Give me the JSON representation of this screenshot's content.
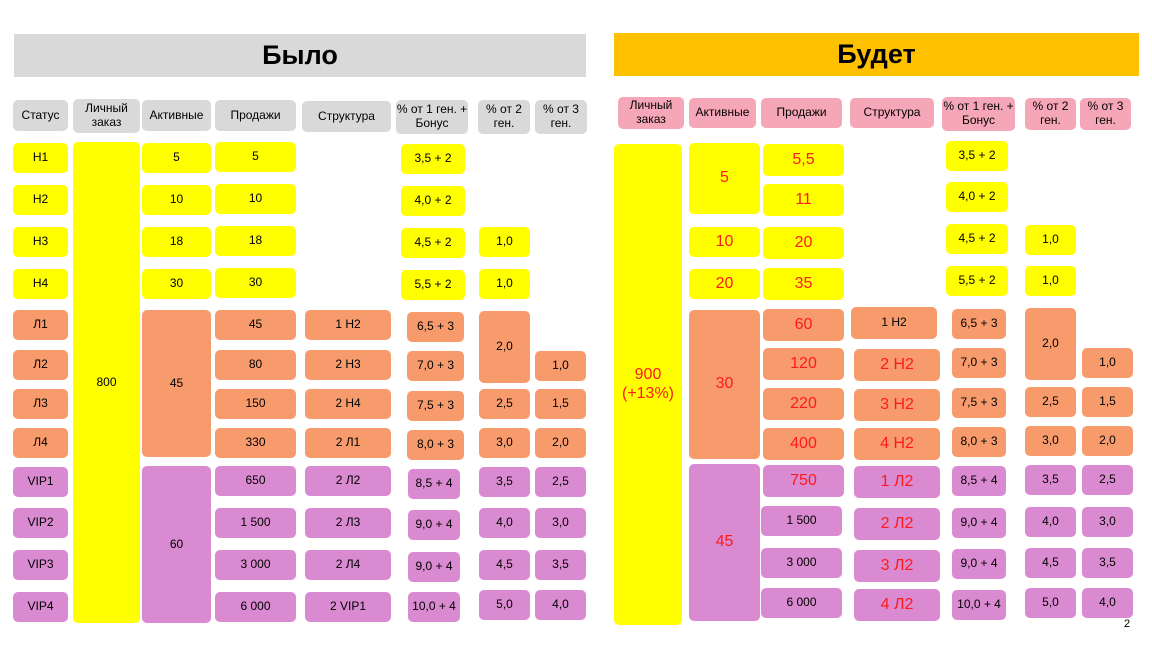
{
  "title_left": "Было",
  "title_right": "Будет",
  "page_number": "2",
  "colors": {
    "yellow": "#ffff00",
    "orange": "#f79b6c",
    "purple": "#da8ad0",
    "pink": "#f6a7b7",
    "gray": "#d9d9d9",
    "gold": "#ffc000",
    "red_text": "#ff1a1a"
  },
  "left": {
    "headers": [
      "Статус",
      "Личный заказ",
      "Активные",
      "Продажи",
      "Структура",
      "% от 1 ген. + Бонус",
      "% от 2 ген.",
      "% от 3 ген."
    ],
    "rows": [
      {
        "status": "Н1",
        "sales": "5",
        "structure": "",
        "g1": "3,5 + 2",
        "g2": "",
        "g3": ""
      },
      {
        "status": "Н2",
        "sales": "10",
        "structure": "",
        "g1": "4,0 + 2",
        "g2": "",
        "g3": ""
      },
      {
        "status": "Н3",
        "sales": "18",
        "structure": "",
        "g1": "4,5 + 2",
        "g2": "1,0",
        "g3": ""
      },
      {
        "status": "Н4",
        "sales": "30",
        "structure": "",
        "g1": "5,5 + 2",
        "g2": "1,0",
        "g3": ""
      },
      {
        "status": "Л1",
        "sales": "45",
        "structure": "1 Н2",
        "g1": "6,5 + 3",
        "g2": "",
        "g3": ""
      },
      {
        "status": "Л2",
        "sales": "80",
        "structure": "2 Н3",
        "g1": "7,0 + 3",
        "g2": "",
        "g3": "1,0"
      },
      {
        "status": "Л3",
        "sales": "150",
        "structure": "2 Н4",
        "g1": "7,5 + 3",
        "g2": "2,5",
        "g3": "1,5"
      },
      {
        "status": "Л4",
        "sales": "330",
        "structure": "2 Л1",
        "g1": "8,0 + 3",
        "g2": "3,0",
        "g3": "2,0"
      },
      {
        "status": "VIP1",
        "sales": "650",
        "structure": "2 Л2",
        "g1": "8,5 + 4",
        "g2": "3,5",
        "g3": "2,5"
      },
      {
        "status": "VIP2",
        "sales": "1 500",
        "structure": "2 Л3",
        "g1": "9,0 + 4",
        "g2": "4,0",
        "g3": "3,0"
      },
      {
        "status": "VIP3",
        "sales": "3 000",
        "structure": "2 Л4",
        "g1": "9,0 + 4",
        "g2": "4,5",
        "g3": "3,5"
      },
      {
        "status": "VIP4",
        "sales": "6 000",
        "structure": "2 VIP1",
        "g1": "10,0 + 4",
        "g2": "5,0",
        "g3": "4,0"
      }
    ],
    "personal_order": "800",
    "active_groups": [
      "5",
      "10",
      "18",
      "30",
      "45",
      "60"
    ],
    "merged_g2_l": "2,0"
  },
  "right": {
    "headers": [
      "Личный заказ",
      "Активные",
      "Продажи",
      "Структура",
      "% от 1 ген. + Бонус",
      "% от 2 ген.",
      "% от 3 ген."
    ],
    "rows": [
      {
        "sales": "5,5",
        "structure": "",
        "g1": "3,5 + 2",
        "g2": "",
        "g3": ""
      },
      {
        "sales": "11",
        "structure": "",
        "g1": "4,0 + 2",
        "g2": "",
        "g3": ""
      },
      {
        "sales": "20",
        "structure": "",
        "g1": "4,5 + 2",
        "g2": "1,0",
        "g3": ""
      },
      {
        "sales": "35",
        "structure": "",
        "g1": "5,5 + 2",
        "g2": "1,0",
        "g3": ""
      },
      {
        "sales": "60",
        "structure": "1 Н2",
        "g1": "6,5 + 3",
        "g2": "",
        "g3": ""
      },
      {
        "sales": "120",
        "structure": "2 Н2",
        "g1": "7,0 + 3",
        "g2": "",
        "g3": "1,0"
      },
      {
        "sales": "220",
        "structure": "3 Н2",
        "g1": "7,5 + 3",
        "g2": "2,5",
        "g3": "1,5"
      },
      {
        "sales": "400",
        "structure": "4 Н2",
        "g1": "8,0 + 3",
        "g2": "3,0",
        "g3": "2,0"
      },
      {
        "sales": "750",
        "structure": "1 Л2",
        "g1": "8,5 + 4",
        "g2": "3,5",
        "g3": "2,5"
      },
      {
        "sales": "1 500",
        "structure": "2 Л2",
        "g1": "9,0 + 4",
        "g2": "4,0",
        "g3": "3,0"
      },
      {
        "sales": "3 000",
        "structure": "3 Л2",
        "g1": "9,0 + 4",
        "g2": "4,5",
        "g3": "3,5"
      },
      {
        "sales": "6 000",
        "structure": "4 Л2",
        "g1": "10,0 + 4",
        "g2": "5,0",
        "g3": "4,0"
      }
    ],
    "personal_order_line1": "900",
    "personal_order_line2": "(+13%)",
    "active_groups": [
      "5",
      "10",
      "20",
      "30",
      "45"
    ],
    "merged_g2_l": "2,0"
  }
}
